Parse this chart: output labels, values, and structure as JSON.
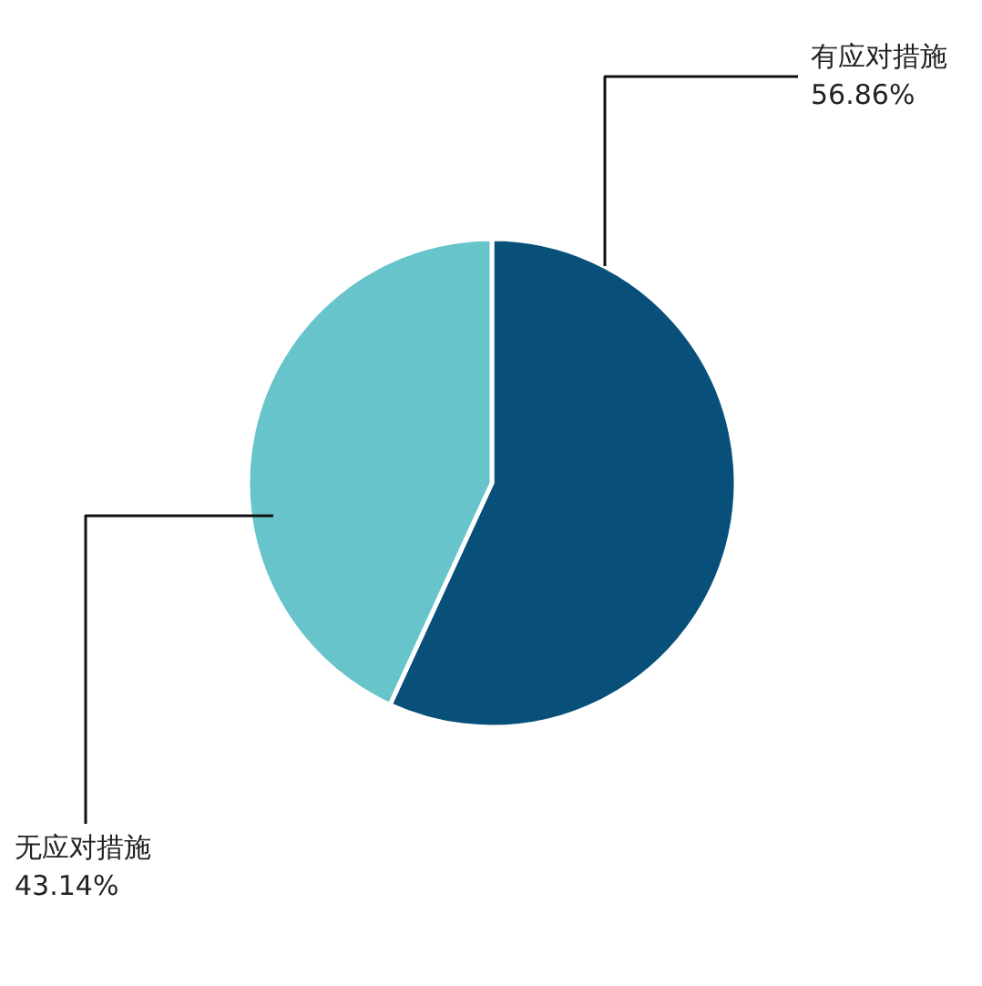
{
  "chart_data": {
    "type": "pie",
    "categories": [
      "有应对措施",
      "无应对措施"
    ],
    "values": [
      56.86,
      43.14
    ],
    "colors": [
      "#08507a",
      "#67c4cb"
    ],
    "value_labels": [
      "56.86%",
      "43.14%"
    ]
  }
}
